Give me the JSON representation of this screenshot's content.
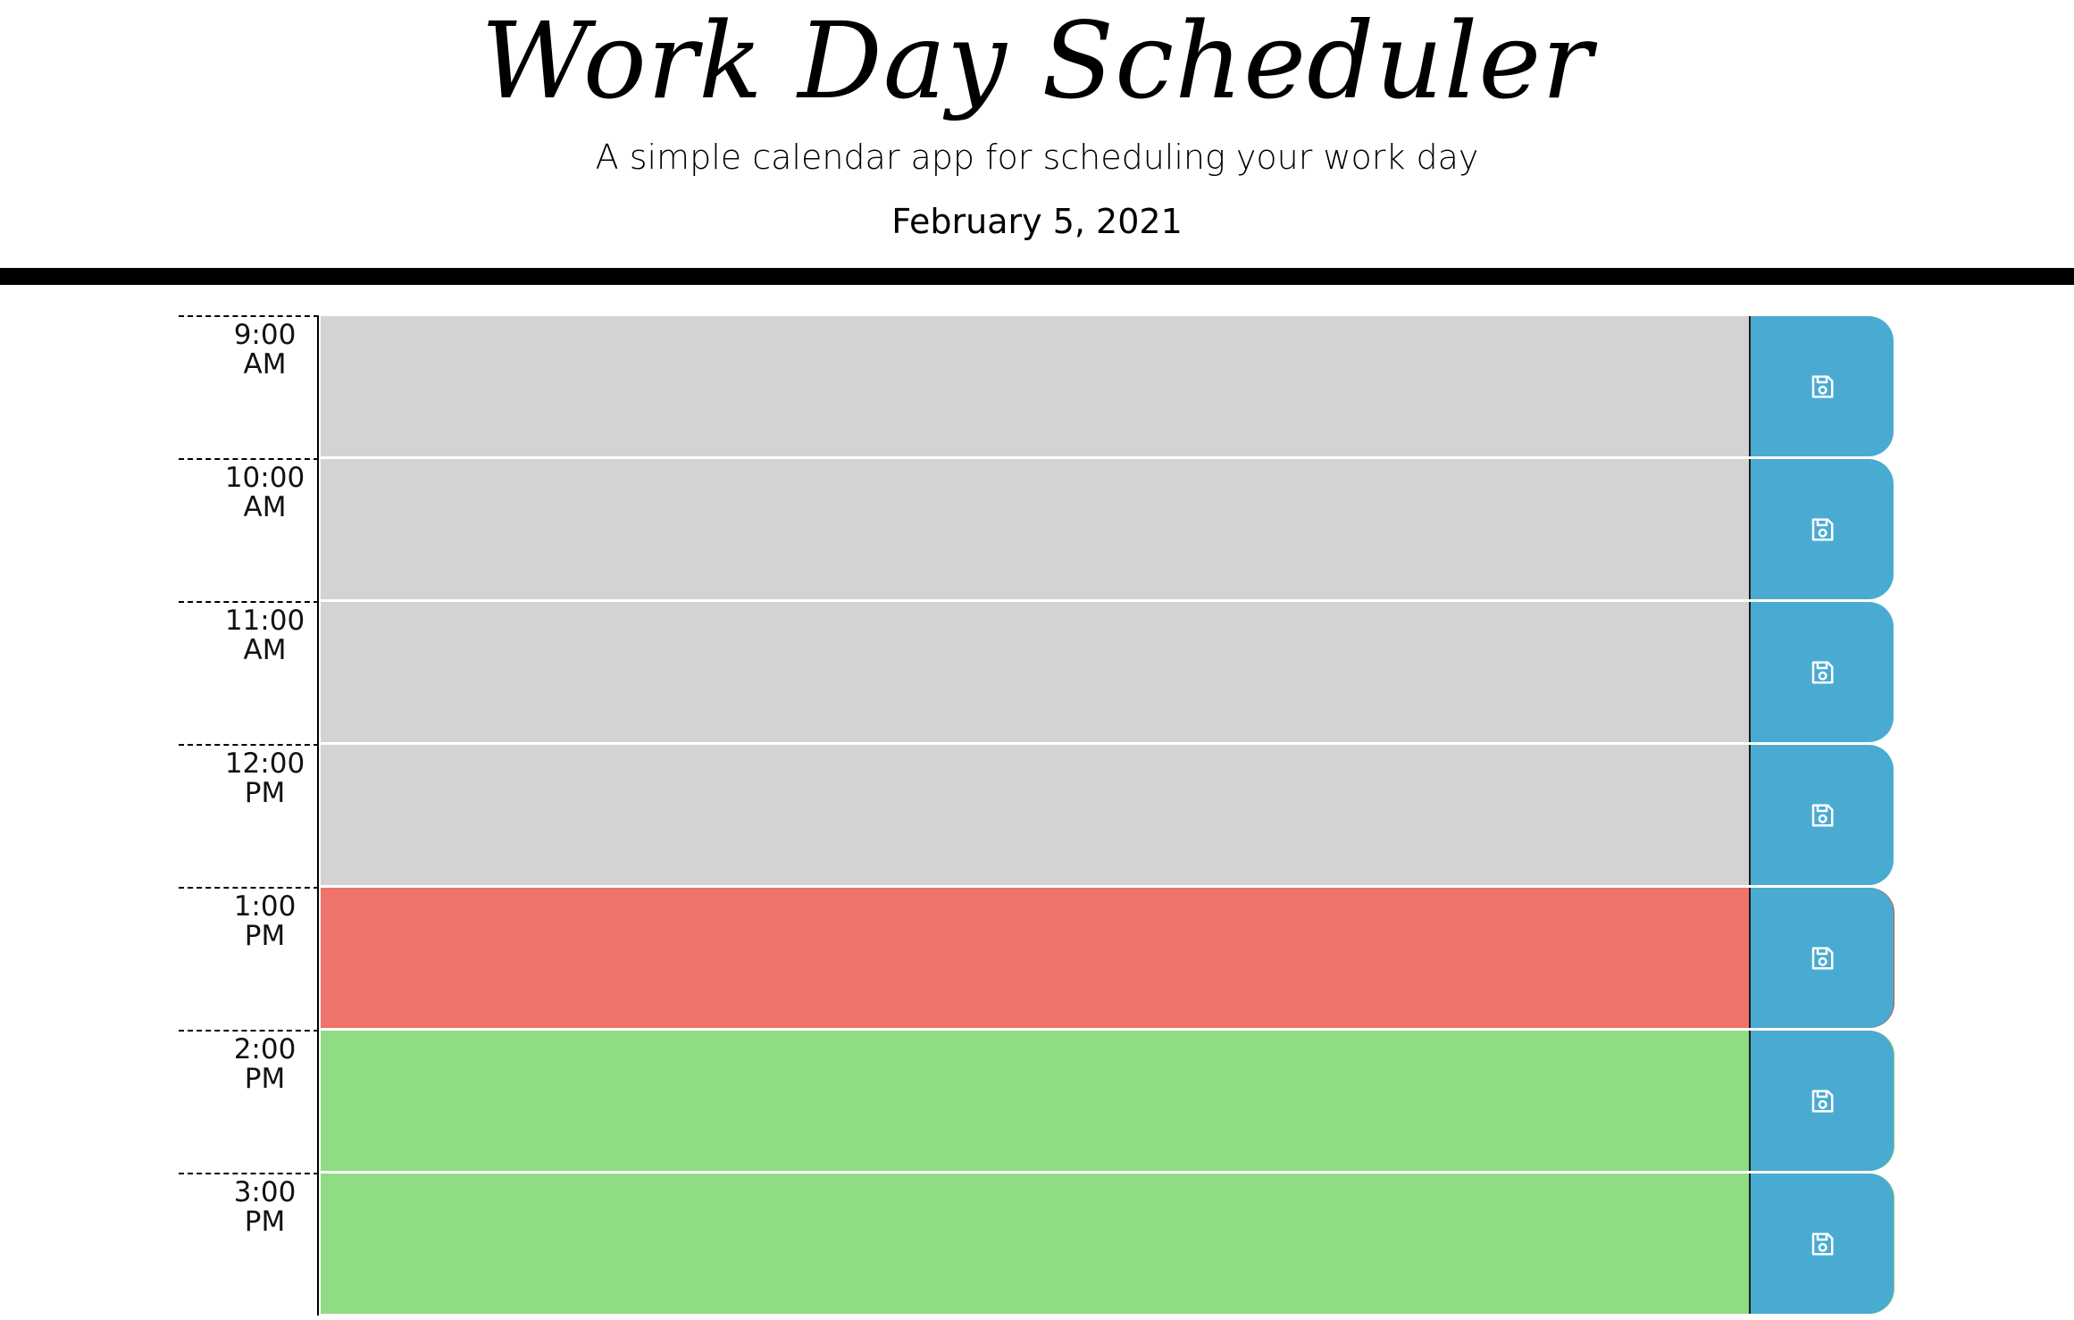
{
  "header": {
    "title": "Work Day Scheduler",
    "lead": "A simple calendar app for scheduling your work day",
    "current_day": "February 5, 2021"
  },
  "colors": {
    "past": "#d3d3d3",
    "present": "#ee736a",
    "future": "#90dc85",
    "save_button": "#4aabd2"
  },
  "save_icon": "floppy-disk-save-icon",
  "time_blocks": [
    {
      "hour": "9:00",
      "period": "AM",
      "status": "past",
      "text": ""
    },
    {
      "hour": "10:00",
      "period": "AM",
      "status": "past",
      "text": ""
    },
    {
      "hour": "11:00",
      "period": "AM",
      "status": "past",
      "text": ""
    },
    {
      "hour": "12:00",
      "period": "PM",
      "status": "past",
      "text": ""
    },
    {
      "hour": "1:00",
      "period": "PM",
      "status": "present",
      "text": ""
    },
    {
      "hour": "2:00",
      "period": "PM",
      "status": "future",
      "text": ""
    },
    {
      "hour": "3:00",
      "period": "PM",
      "status": "future",
      "text": ""
    }
  ]
}
